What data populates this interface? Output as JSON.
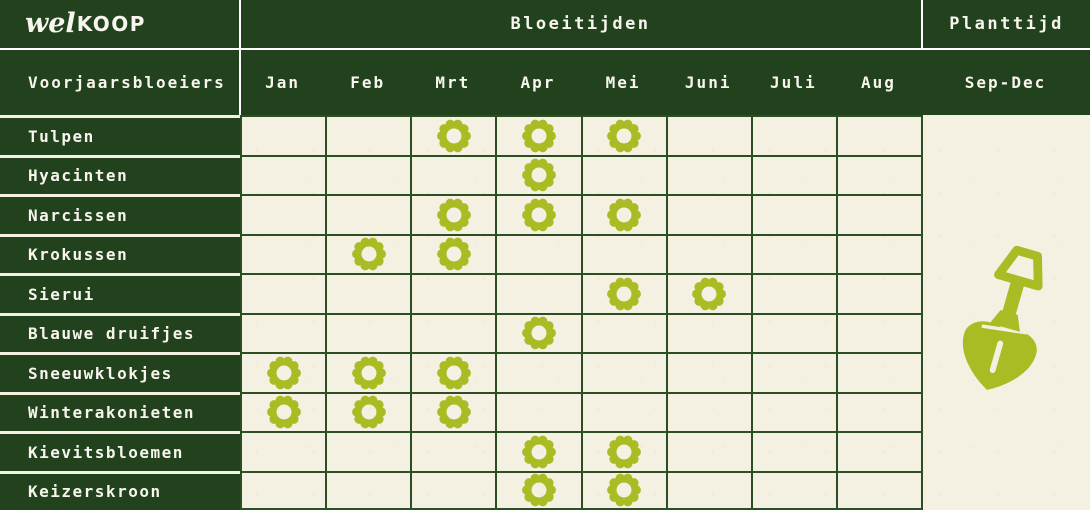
{
  "colors": {
    "dark_green": "#22421d",
    "grid_line": "#2b4e23",
    "olive": "#a9bc23",
    "background": "#f4f0e2",
    "divider_white": "#ffffff",
    "text_white": "#f7f5ee"
  },
  "logo": {
    "script_part": "wel",
    "caps_part": "KOOP"
  },
  "header": {
    "bloom_title": "Bloeitijden",
    "plant_title": "Planttijd",
    "row_group_title": "Voorjaarsbloeiers",
    "plant_period": "Sep-Dec"
  },
  "icons": {
    "bloom_marker": "flower-ring-icon",
    "plant_marker": "shovel-icon"
  },
  "chart_data": {
    "type": "table",
    "title": "Bloeitijden",
    "row_header": "Voorjaarsbloeiers",
    "categories": [
      "Jan",
      "Feb",
      "Mrt",
      "Apr",
      "Mei",
      "Juni",
      "Juli",
      "Aug"
    ],
    "plant_period_label": "Sep-Dec",
    "marker": "flower-ring-icon",
    "series": [
      {
        "name": "Tulpen",
        "bloom_months": [
          "Mrt",
          "Apr",
          "Mei"
        ]
      },
      {
        "name": "Hyacinten",
        "bloom_months": [
          "Apr"
        ]
      },
      {
        "name": "Narcissen",
        "bloom_months": [
          "Mrt",
          "Apr",
          "Mei"
        ]
      },
      {
        "name": "Krokussen",
        "bloom_months": [
          "Feb",
          "Mrt"
        ]
      },
      {
        "name": "Sierui",
        "bloom_months": [
          "Mei",
          "Juni"
        ]
      },
      {
        "name": "Blauwe druifjes",
        "bloom_months": [
          "Apr"
        ]
      },
      {
        "name": "Sneeuwklokjes",
        "bloom_months": [
          "Jan",
          "Feb",
          "Mrt"
        ]
      },
      {
        "name": "Winterakonieten",
        "bloom_months": [
          "Jan",
          "Feb",
          "Mrt"
        ]
      },
      {
        "name": "Kievitsbloemen",
        "bloom_months": [
          "Apr",
          "Mei"
        ]
      },
      {
        "name": "Keizerskroon",
        "bloom_months": [
          "Apr",
          "Mei"
        ]
      }
    ]
  }
}
